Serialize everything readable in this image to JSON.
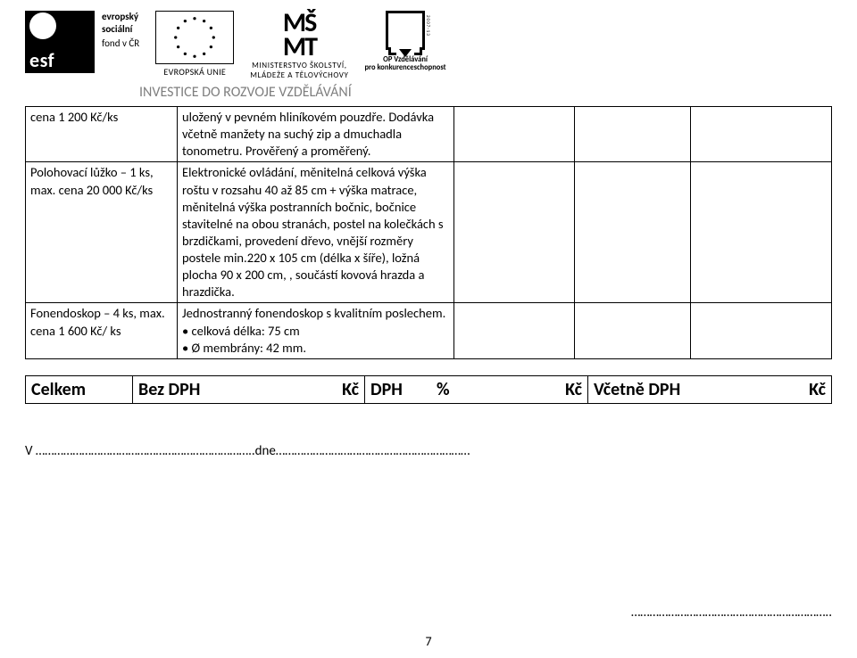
{
  "header": {
    "esf_abbrev": "esf",
    "esf_line1": "evropský",
    "esf_line2": "sociální",
    "esf_line3": "fond v ČR",
    "eu_label": "EVROPSKÁ UNIE",
    "msmt_logo_top": "MŠ",
    "msmt_logo_bottom": "MT",
    "msmt_line1": "MINISTERSTVO ŠKOLSTVÍ,",
    "msmt_line2": "MLÁDEŽE A TĚLOVÝCHOVY",
    "op_line1": "OP Vzdělávání",
    "op_line2": "pro konkurenceschopnost",
    "op_side": "2007-13",
    "invest": "INVESTICE DO ROZVOJE VZDĚLÁVÁNÍ"
  },
  "table": {
    "rows": [
      {
        "c1": "cena 1 200 Kč/ks",
        "c2": "uložený v pevném hliníkovém pouzdře. Dodávka včetně manžety na suchý zip a dmuchadla tonometru. Prověřený a proměřený."
      },
      {
        "c1": "Polohovací lůžko – 1 ks, max. cena 20 000 Kč/ks",
        "c2": "Elektronické ovládání, měnitelná celková výška roštu v rozsahu 40 až 85 cm + výška matrace, měnitelná výška postranních bočnic, bočnice stavitelné na obou stranách, postel na kolečkách s brzdičkami, provedení dřevo, vnější rozměry postele min.220 x 105 cm (délka x šíře), ložná plocha 90 x 200 cm, , součástí kovová hrazda a hrazdička."
      },
      {
        "c1": "Fonendoskop – 4 ks, max. cena 1 600 Kč/ ks",
        "c2": "Jednostranný fonendoskop s kvalitním poslechem.\n• celková délka: 75 cm\n• Ø membrány: 42 mm."
      }
    ]
  },
  "totals": {
    "celkem": "Celkem",
    "bez_dph": "Bez DPH",
    "dph": "DPH",
    "pct": "%",
    "vcetne": "Včetně DPH",
    "kc": "Kč"
  },
  "footer": {
    "left": "V ……………………………………………………………..dne………………………………………………………",
    "right": "………………………………………………………..",
    "pagenum": "7"
  },
  "colors": {
    "text": "#000000",
    "muted": "#7f7f7f",
    "bg": "#ffffff"
  }
}
